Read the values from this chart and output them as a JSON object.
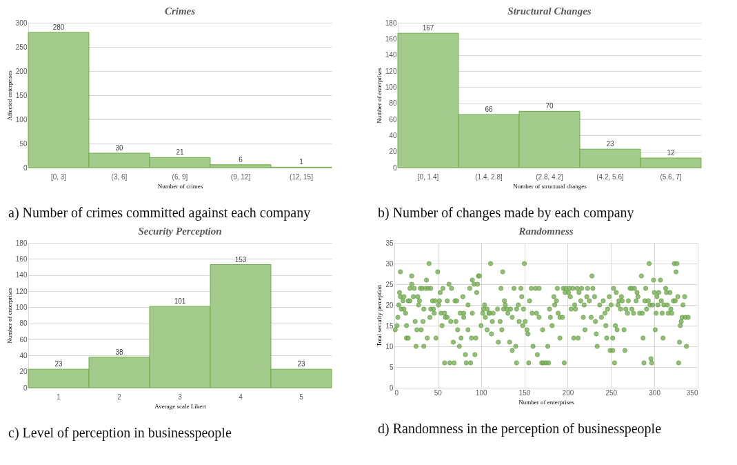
{
  "chart_data": [
    {
      "type": "bar",
      "title": "Crimes",
      "xlabel": "Number of crimes",
      "ylabel": "Affected enterprises",
      "categories": [
        "[0, 3]",
        "(3, 6]",
        "(6, 9]",
        "(9, 12]",
        "(12, 15]"
      ],
      "values": [
        280,
        30,
        21,
        6,
        1
      ],
      "color": "#a3cb8c",
      "ylim": [
        0,
        300
      ],
      "yticks": [
        0,
        50,
        100,
        150,
        200,
        250,
        300
      ],
      "grid": "y",
      "data_labels": true,
      "annotations": [
        "a) Number of crimes committed against each company"
      ]
    },
    {
      "type": "bar",
      "title": "Structural Changes",
      "xlabel": "Number of structural changes",
      "ylabel": "Number of enterprises",
      "categories": [
        "[0, 1.4]",
        "(1.4, 2.8]",
        "(2.8, 4.2]",
        "(4.2, 5.6]",
        "(5.6, 7]"
      ],
      "values": [
        167,
        66,
        70,
        23,
        12
      ],
      "color": "#a3cb8c",
      "ylim": [
        0,
        180
      ],
      "yticks": [
        0,
        20,
        40,
        60,
        80,
        100,
        120,
        140,
        160,
        180
      ],
      "grid": "y",
      "data_labels": true,
      "annotations": [
        "b) Number of changes made by each company"
      ]
    },
    {
      "type": "bar",
      "title": "Security Perception",
      "xlabel": "Average scale Likert",
      "ylabel": "Number of enterprises",
      "categories": [
        "1",
        "2",
        "3",
        "4",
        "5"
      ],
      "values": [
        23,
        38,
        101,
        153,
        23
      ],
      "color": "#a3cb8c",
      "ylim": [
        0,
        180
      ],
      "yticks": [
        0,
        20,
        40,
        60,
        80,
        100,
        120,
        140,
        160,
        180
      ],
      "grid": "y",
      "data_labels": true,
      "annotations": [
        "c) Level of perception in businesspeople"
      ]
    },
    {
      "type": "scatter",
      "title": "Randomness",
      "xlabel": "Number of enterprises",
      "ylabel": "Total security perception",
      "color": "#7fb35e",
      "marker": "circle",
      "xlim": [
        0,
        350
      ],
      "xticks": [
        0,
        50,
        100,
        150,
        200,
        250,
        300,
        350
      ],
      "ylim": [
        0,
        35
      ],
      "yticks": [
        0,
        5,
        10,
        15,
        20,
        25,
        30,
        35
      ],
      "grid": true,
      "annotations": [
        "d) Randomness in the perception of businesspeople"
      ],
      "x": [
        1,
        3,
        4,
        5,
        6,
        7,
        7,
        8,
        10,
        11,
        11,
        13,
        14,
        14,
        16,
        16,
        18,
        18,
        20,
        20,
        22,
        23,
        24,
        25,
        26,
        27,
        28,
        29,
        30,
        31,
        32,
        33,
        34,
        34,
        36,
        37,
        38,
        39,
        40,
        41,
        42,
        42,
        44,
        45,
        46,
        47,
        48,
        50,
        51,
        52,
        53,
        54,
        55,
        56,
        58,
        58,
        59,
        61,
        61,
        63,
        64,
        65,
        66,
        68,
        69,
        70,
        71,
        72,
        73,
        75,
        76,
        77,
        79,
        80,
        80,
        82,
        83,
        85,
        85,
        87,
        88,
        89,
        90,
        90,
        92,
        93,
        94,
        95,
        96,
        97,
        98,
        100,
        102,
        103,
        104,
        105,
        107,
        107,
        109,
        110,
        111,
        112,
        113,
        114,
        119,
        120,
        122,
        123,
        124,
        125,
        126,
        127,
        128,
        130,
        131,
        133,
        134,
        136,
        136,
        138,
        140,
        141,
        141,
        143,
        144,
        146,
        147,
        148,
        149,
        150,
        151,
        153,
        154,
        155,
        156,
        158,
        159,
        160,
        163,
        164,
        165,
        167,
        167,
        170,
        171,
        172,
        175,
        177,
        178,
        179,
        180,
        182,
        184,
        185,
        187,
        188,
        189,
        191,
        191,
        194,
        195,
        196,
        197,
        198,
        201,
        202,
        203,
        204,
        206,
        207,
        208,
        209,
        211,
        212,
        213,
        215,
        216,
        218,
        219,
        220,
        222,
        223,
        225,
        227,
        228,
        229,
        231,
        232,
        233,
        234,
        237,
        239,
        241,
        243,
        244,
        245,
        246,
        248,
        249,
        250,
        252,
        252,
        253,
        254,
        255,
        256,
        257,
        258,
        259,
        261,
        262,
        263,
        265,
        266,
        267,
        269,
        270,
        272,
        274,
        274,
        276,
        277,
        279,
        280,
        281,
        283,
        285,
        286,
        287,
        288,
        289,
        290,
        291,
        293,
        294,
        295,
        296,
        297,
        298,
        299,
        300,
        301,
        302,
        303,
        304,
        305,
        307,
        308,
        309,
        310,
        311,
        313,
        314,
        315,
        316,
        318,
        319,
        320,
        322,
        323,
        324,
        325,
        326,
        327,
        328,
        329,
        330,
        331,
        332,
        333,
        335,
        336,
        337,
        339
      ],
      "values": [
        14,
        15,
        17,
        20,
        23,
        28,
        22,
        19,
        21,
        19,
        22,
        18,
        15,
        12,
        12,
        21,
        21,
        24,
        25,
        27,
        22,
        24,
        16,
        10,
        14,
        22,
        20,
        21,
        24,
        14,
        24,
        16,
        19,
        10,
        24,
        26,
        12,
        24,
        30,
        17,
        19,
        24,
        21,
        19,
        18,
        21,
        12,
        28,
        20,
        21,
        23,
        18,
        15,
        24,
        18,
        6,
        17,
        21,
        17,
        25,
        6,
        16,
        24,
        11,
        6,
        21,
        16,
        21,
        14,
        10,
        18,
        12,
        22,
        18,
        17,
        8,
        6,
        14,
        20,
        24,
        6,
        12,
        18,
        26,
        25,
        8,
        12,
        23,
        25,
        27,
        27,
        15,
        18,
        19,
        20,
        17,
        19,
        14,
        18,
        18,
        30,
        13,
        16,
        18,
        19,
        11,
        16,
        24,
        14,
        28,
        19,
        21,
        20,
        19,
        18,
        11,
        19,
        9,
        17,
        24,
        10,
        6,
        19,
        20,
        16,
        24,
        22,
        15,
        19,
        30,
        16,
        14,
        13,
        6,
        21,
        24,
        18,
        10,
        24,
        18,
        8,
        24,
        17,
        6,
        14,
        6,
        6,
        10,
        6,
        19,
        17,
        15,
        22,
        20,
        21,
        24,
        18,
        17,
        12,
        17,
        24,
        6,
        23,
        24,
        23,
        24,
        22,
        19,
        24,
        12,
        20,
        19,
        24,
        12,
        23,
        21,
        24,
        17,
        20,
        14,
        22,
        24,
        21,
        17,
        27,
        24,
        22,
        16,
        13,
        10,
        20,
        17,
        21,
        18,
        15,
        12,
        19,
        22,
        9,
        20,
        9,
        12,
        24,
        6,
        15,
        23,
        14,
        20,
        21,
        19,
        22,
        21,
        14,
        9,
        19,
        18,
        21,
        24,
        19,
        24,
        18,
        24,
        21,
        23,
        22,
        18,
        27,
        18,
        12,
        6,
        21,
        24,
        19,
        21,
        30,
        20,
        7,
        6,
        20,
        26,
        23,
        14,
        18,
        22,
        20,
        23,
        26,
        21,
        18,
        12,
        20,
        24,
        23,
        20,
        18,
        23,
        19,
        18,
        21,
        30,
        21,
        28,
        30,
        22,
        6,
        11,
        15,
        16,
        17,
        20,
        22,
        17,
        10,
        17
      ]
    }
  ]
}
